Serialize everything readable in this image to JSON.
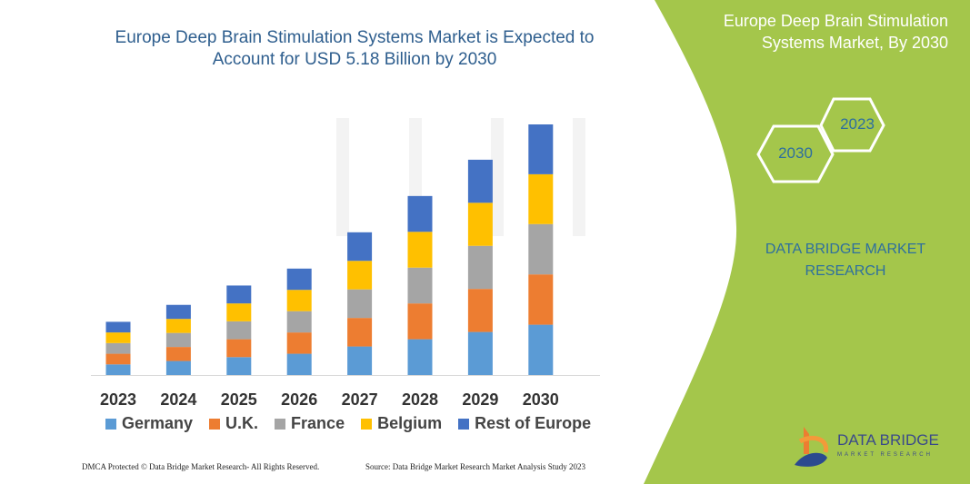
{
  "header": {
    "title": "Europe Deep Brain Stimulation Systems Market is Expected to Account for USD 5.18 Billion by 2030"
  },
  "side_panel": {
    "title": "Europe Deep Brain Stimulation Systems Market, By 2030",
    "hex_years": [
      "2023",
      "2030"
    ],
    "brand_text": "DATA BRIDGE MARKET RESEARCH",
    "logo_name": "DATA BRIDGE",
    "logo_sub": "MARKET RESEARCH",
    "panel_color": "#a4c64b"
  },
  "footer": {
    "left": "DMCA Protected © Data Bridge Market Research- All Rights Reserved.",
    "right": "Source: Data Bridge Market Research Market Analysis Study 2023"
  },
  "chart_data": {
    "type": "bar",
    "stacked": true,
    "categories": [
      "2023",
      "2024",
      "2025",
      "2026",
      "2027",
      "2028",
      "2029",
      "2030"
    ],
    "series": [
      {
        "name": "Germany",
        "color": "#5b9bd5",
        "values": [
          0.22,
          0.29,
          0.37,
          0.44,
          0.59,
          0.74,
          0.89,
          1.04
        ]
      },
      {
        "name": "U.K.",
        "color": "#ed7d31",
        "values": [
          0.22,
          0.29,
          0.37,
          0.44,
          0.59,
          0.74,
          0.89,
          1.04
        ]
      },
      {
        "name": "France",
        "color": "#a5a5a5",
        "values": [
          0.22,
          0.29,
          0.37,
          0.44,
          0.59,
          0.74,
          0.89,
          1.04
        ]
      },
      {
        "name": "Belgium",
        "color": "#ffc000",
        "values": [
          0.22,
          0.29,
          0.37,
          0.44,
          0.59,
          0.74,
          0.89,
          1.03
        ]
      },
      {
        "name": "Rest of Europe",
        "color": "#4472c4",
        "values": [
          0.22,
          0.29,
          0.37,
          0.44,
          0.59,
          0.74,
          0.89,
          1.03
        ]
      }
    ],
    "legend_position": "bottom",
    "grid": false,
    "y_axis_shown": false
  }
}
